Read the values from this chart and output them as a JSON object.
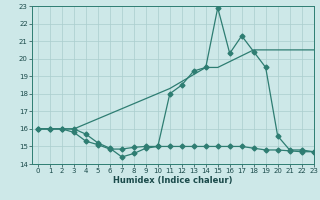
{
  "xlabel": "Humidex (Indice chaleur)",
  "xlim": [
    -0.5,
    23
  ],
  "ylim": [
    14,
    23
  ],
  "xticks": [
    0,
    1,
    2,
    3,
    4,
    5,
    6,
    7,
    8,
    9,
    10,
    11,
    12,
    13,
    14,
    15,
    16,
    17,
    18,
    19,
    20,
    21,
    22,
    23
  ],
  "yticks": [
    14,
    15,
    16,
    17,
    18,
    19,
    20,
    21,
    22,
    23
  ],
  "bg_color": "#cde8e8",
  "grid_color": "#aacece",
  "line_color": "#2e7d72",
  "s1_x": [
    0,
    1,
    2,
    3,
    4,
    5,
    6,
    7,
    8,
    9,
    10,
    11,
    12,
    13,
    14,
    15,
    16,
    17,
    18,
    19,
    20,
    21,
    22,
    23
  ],
  "s1_y": [
    16,
    16,
    16,
    16,
    15.7,
    15.2,
    14.9,
    14.4,
    14.6,
    14.9,
    15.0,
    18.0,
    18.5,
    19.3,
    19.5,
    22.9,
    20.3,
    21.3,
    20.4,
    19.5,
    15.6,
    14.8,
    14.8,
    14.7
  ],
  "s2_x": [
    0,
    1,
    2,
    3,
    4,
    5,
    6,
    7,
    8,
    9,
    10,
    11,
    12,
    13,
    14,
    15,
    16,
    17,
    18,
    19,
    20,
    21,
    22,
    23
  ],
  "s2_y": [
    16,
    16,
    16,
    15.8,
    15.3,
    15.1,
    14.85,
    14.85,
    14.95,
    15.0,
    15.0,
    15.0,
    15.0,
    15.0,
    15.0,
    15.0,
    15.0,
    15.0,
    14.9,
    14.8,
    14.8,
    14.75,
    14.7,
    14.7
  ],
  "s3_x": [
    0,
    3,
    11,
    14,
    15,
    18,
    20,
    23
  ],
  "s3_y": [
    16,
    16,
    18.3,
    19.5,
    19.5,
    20.5,
    20.5,
    20.5
  ]
}
